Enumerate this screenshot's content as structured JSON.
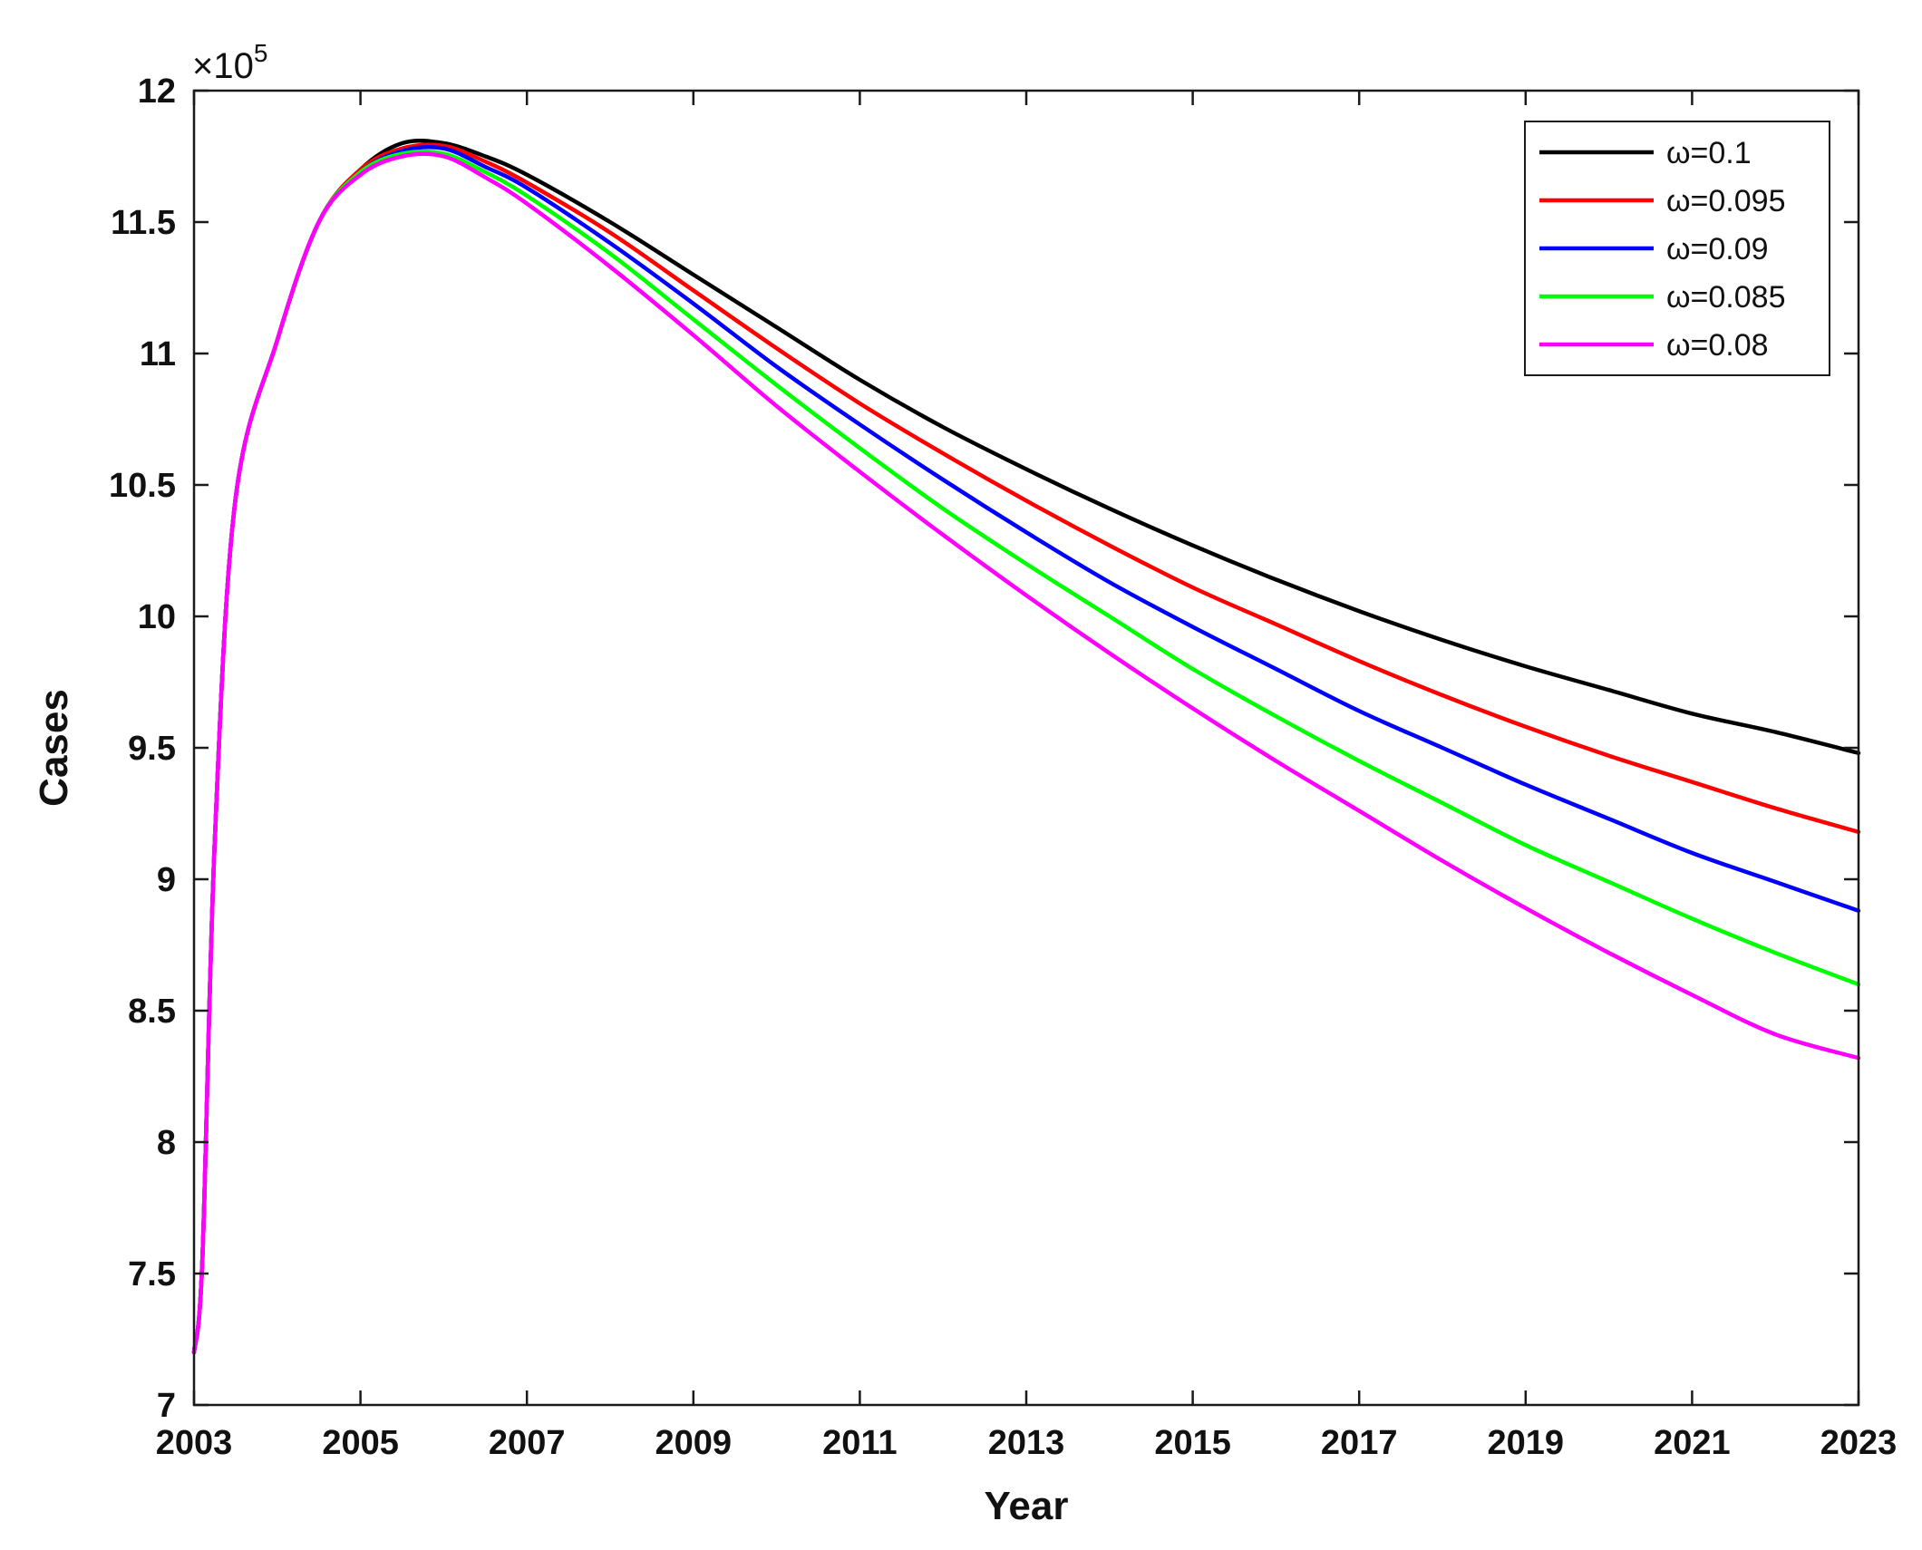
{
  "chart_data": {
    "type": "line",
    "title": "",
    "xlabel": "Year",
    "ylabel": "Cases",
    "y_exponent_label": "×10",
    "y_exponent_power": "5",
    "xlim": [
      2003,
      2023
    ],
    "ylim": [
      7,
      12
    ],
    "x_ticks": [
      2003,
      2005,
      2007,
      2009,
      2011,
      2013,
      2015,
      2017,
      2019,
      2021,
      2023
    ],
    "x_tick_labels": [
      "2003",
      "2005",
      "2007",
      "2009",
      "2011",
      "2013",
      "2015",
      "2017",
      "2019",
      "2021",
      "2023"
    ],
    "y_ticks": [
      7,
      7.5,
      8,
      8.5,
      9,
      9.5,
      10,
      10.5,
      11,
      11.5,
      12
    ],
    "y_tick_labels": [
      "7",
      "7.5",
      "8",
      "8.5",
      "9",
      "9.5",
      "10",
      "10.5",
      "11",
      "11.5",
      "12"
    ],
    "grid": false,
    "legend_position": "top-right",
    "x": [
      2003,
      2003.1,
      2003.25,
      2003.5,
      2004,
      2004.5,
      2005,
      2005.5,
      2006,
      2006.5,
      2007,
      2008,
      2009,
      2010,
      2011,
      2012,
      2013,
      2014,
      2015,
      2016,
      2017,
      2018,
      2019,
      2020,
      2021,
      2022,
      2023
    ],
    "series": [
      {
        "name": "ω=0.1",
        "color": "#000000",
        "values": [
          7.2,
          7.55,
          9.15,
          10.45,
          11.05,
          11.5,
          11.7,
          11.8,
          11.8,
          11.75,
          11.68,
          11.5,
          11.3,
          11.1,
          10.9,
          10.72,
          10.56,
          10.41,
          10.27,
          10.14,
          10.02,
          9.91,
          9.81,
          9.72,
          9.63,
          9.56,
          9.48
        ]
      },
      {
        "name": "ω=0.095",
        "color": "#ff0000",
        "values": [
          7.2,
          7.55,
          9.15,
          10.45,
          11.05,
          11.5,
          11.7,
          11.78,
          11.79,
          11.73,
          11.65,
          11.46,
          11.24,
          11.02,
          10.81,
          10.62,
          10.44,
          10.27,
          10.11,
          9.97,
          9.83,
          9.7,
          9.58,
          9.47,
          9.37,
          9.27,
          9.18
        ]
      },
      {
        "name": "ω=0.09",
        "color": "#0000ff",
        "values": [
          7.2,
          7.55,
          9.15,
          10.45,
          11.05,
          11.5,
          11.69,
          11.77,
          11.78,
          11.71,
          11.63,
          11.42,
          11.19,
          10.95,
          10.73,
          10.52,
          10.32,
          10.13,
          9.96,
          9.8,
          9.64,
          9.5,
          9.36,
          9.23,
          9.1,
          8.99,
          8.88
        ]
      },
      {
        "name": "ω=0.085",
        "color": "#00ff00",
        "values": [
          7.2,
          7.55,
          9.15,
          10.45,
          11.05,
          11.5,
          11.69,
          11.76,
          11.76,
          11.69,
          11.6,
          11.38,
          11.13,
          10.88,
          10.64,
          10.41,
          10.2,
          10.0,
          9.8,
          9.62,
          9.45,
          9.29,
          9.13,
          8.99,
          8.85,
          8.72,
          8.6
        ]
      },
      {
        "name": "ω=0.08",
        "color": "#ff00ff",
        "values": [
          7.2,
          7.55,
          9.15,
          10.45,
          11.05,
          11.5,
          11.68,
          11.75,
          11.75,
          11.67,
          11.57,
          11.33,
          11.07,
          10.8,
          10.55,
          10.31,
          10.08,
          9.86,
          9.65,
          9.45,
          9.26,
          9.07,
          8.89,
          8.72,
          8.56,
          8.41,
          8.32
        ]
      }
    ]
  }
}
